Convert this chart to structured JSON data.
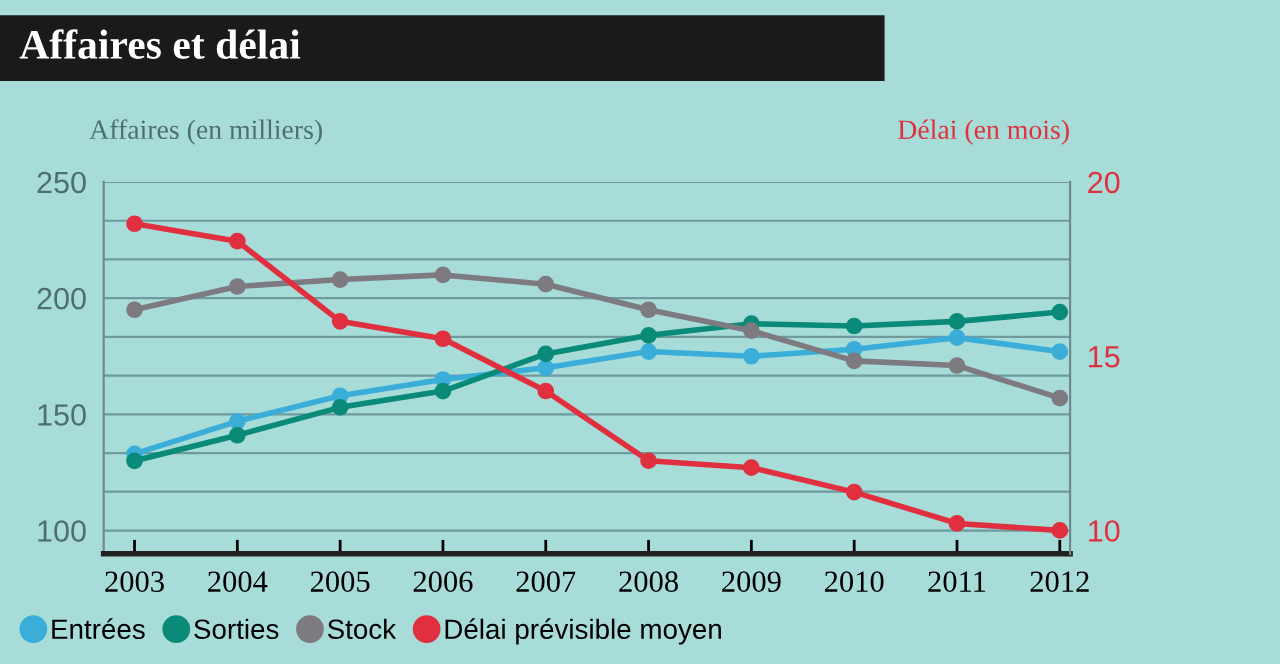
{
  "chart_data": {
    "type": "line",
    "title": "Affaires et délai",
    "ylabel": "Affaires (en milliers)",
    "y2label": "Délai (en mois)",
    "x": [
      2003,
      2004,
      2005,
      2006,
      2007,
      2008,
      2009,
      2010,
      2011,
      2012
    ],
    "xlim": [
      2002.7,
      2012.1
    ],
    "xticks": [
      2003,
      2004,
      2005,
      2006,
      2007,
      2008,
      2009,
      2010,
      2011,
      2012
    ],
    "ylim": [
      90,
      250
    ],
    "yticks": [
      250,
      {
        "value": 233.3,
        "label": null
      },
      {
        "value": 216.7,
        "label": null
      },
      200,
      {
        "value": 183.3,
        "label": null
      },
      {
        "value": 166.7,
        "label": null
      },
      150,
      {
        "value": 133.3,
        "label": null
      },
      {
        "value": 116.7,
        "label": null
      },
      100
    ],
    "y2lim": [
      9.33,
      20
    ],
    "y2ticks": [
      20,
      15,
      10
    ],
    "grid": "y",
    "legend": "bottom",
    "marker": "circle",
    "line_style": "solid",
    "series": [
      {
        "name": "Entrées",
        "color": "#3aaed8",
        "values": [
          133,
          147,
          158,
          165,
          170,
          177,
          175,
          178,
          183,
          177
        ]
      },
      {
        "name": "Sorties",
        "color": "#0a8a78",
        "values": [
          130,
          141,
          153,
          160,
          176,
          184,
          189,
          188,
          190,
          194
        ]
      },
      {
        "name": "Stock",
        "color": "#7d7a80",
        "values": [
          195,
          205,
          208,
          210,
          206,
          195,
          186,
          173,
          171,
          157
        ]
      },
      {
        "name": "Délai prévisible moyen",
        "color": "#e0303f",
        "axis": "y2",
        "values": [
          18.8,
          18.3,
          16.0,
          15.5,
          14.0,
          12.0,
          11.8,
          11.1,
          10.2,
          10.0
        ]
      }
    ]
  }
}
